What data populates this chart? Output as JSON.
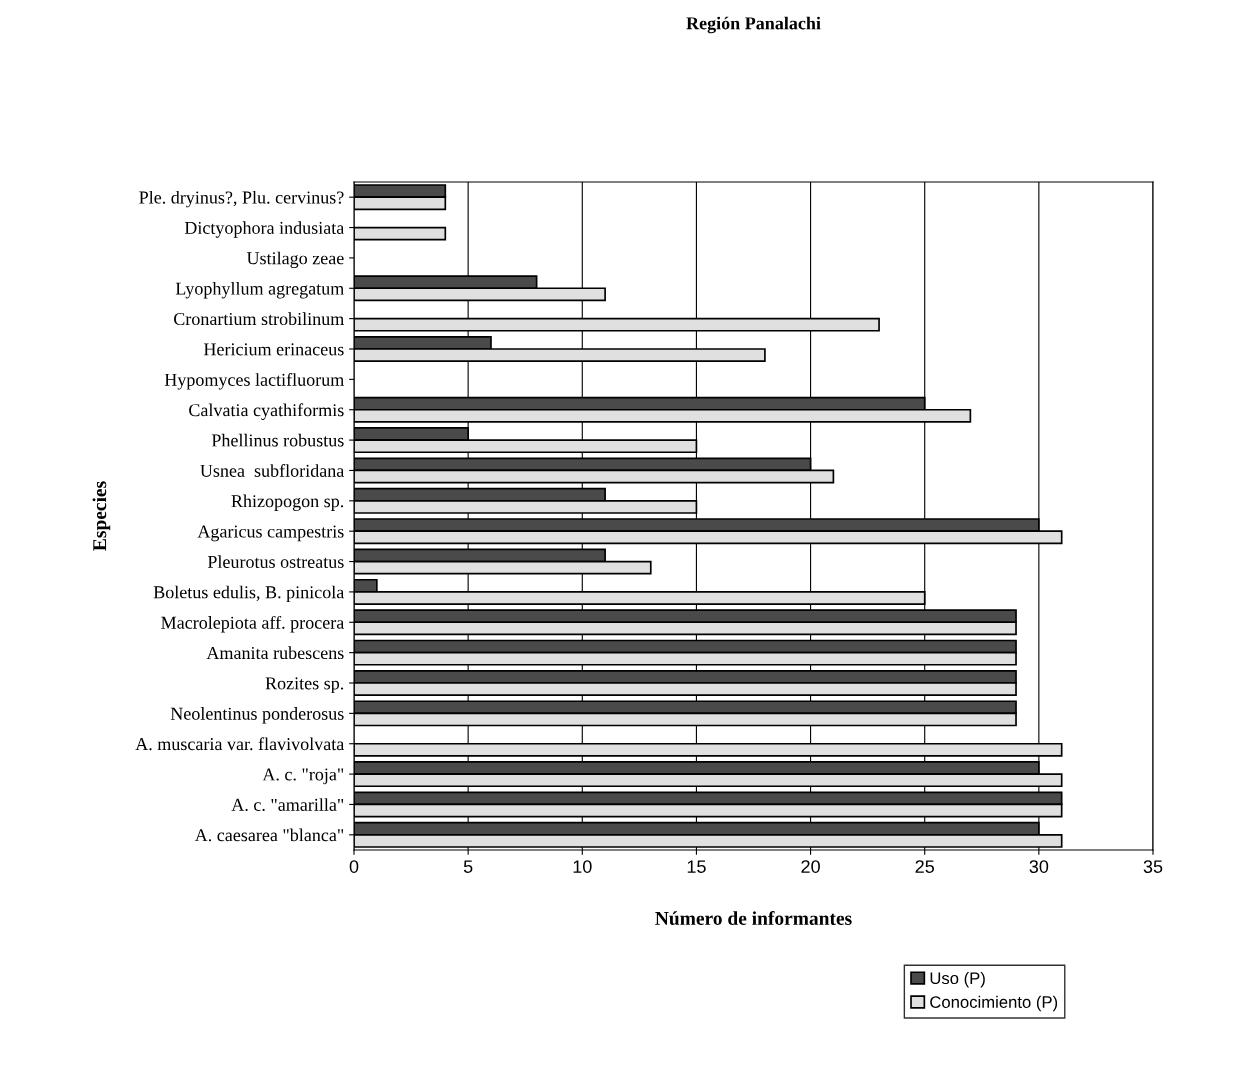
{
  "chart_data": {
    "type": "bar",
    "orientation": "horizontal",
    "title": "Región Panalachi",
    "xlabel": "Número de informantes",
    "ylabel": "Especies",
    "categories": [
      "Ple. dryinus?, Plu. cervinus?",
      "Dictyophora indusiata",
      "Ustilago zeae",
      "Lyophyllum agregatum",
      "Cronartium strobilinum",
      "Hericium erinaceus",
      "Hypomyces lactifluorum",
      "Calvatia cyathiformis",
      "Phellinus robustus",
      "Usnea  subfloridana",
      "Rhizopogon sp.",
      "Agaricus campestris",
      "Pleurotus ostreatus",
      "Boletus edulis, B. pinicola",
      "Macrolepiota aff. procera",
      "Amanita rubescens",
      "Rozites sp.",
      "Neolentinus ponderosus",
      "A. muscaria var. flavivolvata",
      "A. c. \"roja\"",
      "A. c. \"amarilla\"",
      "A. caesarea \"blanca\""
    ],
    "series": [
      {
        "name": "Uso (P)",
        "color": "#4a4a4a",
        "values": [
          4,
          null,
          null,
          8,
          null,
          6,
          null,
          25,
          5,
          20,
          11,
          30,
          11,
          1,
          29,
          29,
          29,
          29,
          null,
          30,
          31,
          30
        ]
      },
      {
        "name": "Conocimiento (P)",
        "color": "#e0e0e0",
        "values": [
          4,
          4,
          null,
          11,
          23,
          18,
          null,
          27,
          15,
          21,
          15,
          31,
          13,
          25,
          29,
          29,
          29,
          29,
          31,
          31,
          31,
          31
        ]
      }
    ],
    "xlim": [
      0,
      35
    ],
    "xticks": [
      0,
      5,
      10,
      15,
      20,
      25,
      30,
      35
    ],
    "grid": "x",
    "legend": "bottom right"
  }
}
